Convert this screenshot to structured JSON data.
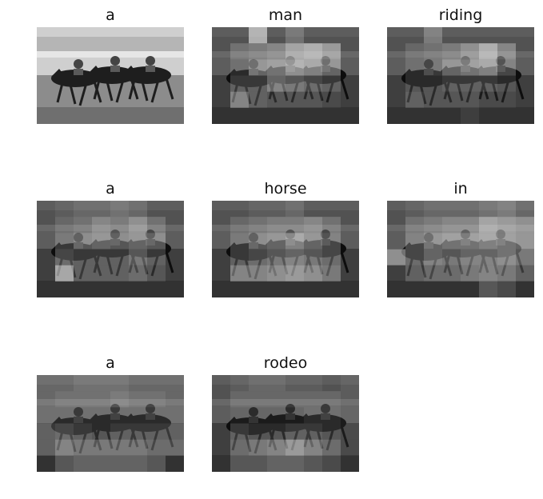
{
  "panels": [
    {
      "word": "a",
      "overlay": "none"
    },
    {
      "word": "man",
      "overlay": "attention"
    },
    {
      "word": "riding",
      "overlay": "attention"
    },
    {
      "word": "a",
      "overlay": "attention"
    },
    {
      "word": "horse",
      "overlay": "attention"
    },
    {
      "word": "in",
      "overlay": "attention"
    },
    {
      "word": "a",
      "overlay": "attention"
    },
    {
      "word": "rodeo",
      "overlay": "attention"
    }
  ],
  "colors": {
    "background": "#ffffff",
    "title_text": "#111111",
    "sky": "#cfcfcf",
    "track": "#8c8c8c",
    "horse": "#1e1e1e"
  },
  "icons": [
    "horse-race-photo"
  ]
}
